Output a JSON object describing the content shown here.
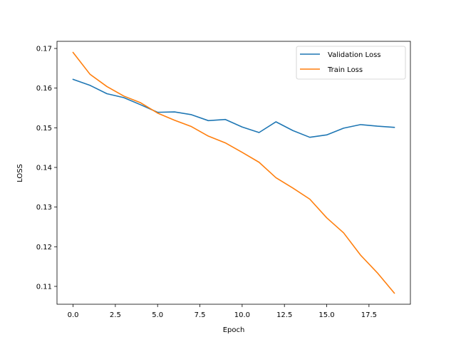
{
  "chart_data": {
    "type": "line",
    "title": "",
    "xlabel": "Epoch",
    "ylabel": "LOSS",
    "xlim": [
      -0.95,
      19.95
    ],
    "ylim": [
      0.1055,
      0.1718
    ],
    "x_ticks": [
      0.0,
      2.5,
      5.0,
      7.5,
      10.0,
      12.5,
      15.0,
      17.5
    ],
    "x_tick_labels": [
      "0.0",
      "2.5",
      "5.0",
      "7.5",
      "10.0",
      "12.5",
      "15.0",
      "17.5"
    ],
    "y_ticks": [
      0.11,
      0.12,
      0.13,
      0.14,
      0.15,
      0.16,
      0.17
    ],
    "y_tick_labels": [
      "0.11",
      "0.12",
      "0.13",
      "0.14",
      "0.15",
      "0.16",
      "0.17"
    ],
    "grid": false,
    "legend_position": "top-right",
    "x": [
      0,
      1,
      2,
      3,
      4,
      5,
      6,
      7,
      8,
      9,
      10,
      11,
      12,
      13,
      14,
      15,
      16,
      17,
      18,
      19
    ],
    "series": [
      {
        "name": "Validation Loss",
        "color": "#1f77b4",
        "values": [
          0.1622,
          0.1607,
          0.1586,
          0.1576,
          0.1558,
          0.1539,
          0.154,
          0.1533,
          0.1518,
          0.1521,
          0.1502,
          0.1488,
          0.1515,
          0.1493,
          0.1476,
          0.1482,
          0.1499,
          0.1508,
          0.1504,
          0.1501
        ]
      },
      {
        "name": "Train Loss",
        "color": "#ff7f0e",
        "values": [
          0.169,
          0.1635,
          0.1604,
          0.158,
          0.1563,
          0.1537,
          0.1519,
          0.1503,
          0.1479,
          0.1462,
          0.1438,
          0.1413,
          0.1374,
          0.1348,
          0.132,
          0.1273,
          0.1235,
          0.1179,
          0.1134,
          0.1083
        ]
      }
    ]
  }
}
